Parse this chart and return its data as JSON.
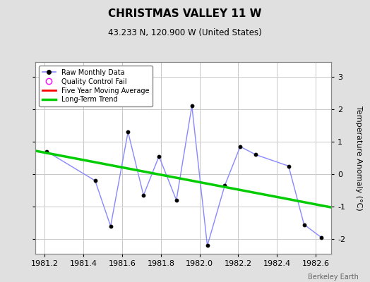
{
  "title": "CHRISTMAS VALLEY 11 W",
  "subtitle": "43.233 N, 120.900 W (United States)",
  "ylabel": "Temperature Anomaly (°C)",
  "watermark": "Berkeley Earth",
  "xlim": [
    1981.15,
    1982.68
  ],
  "ylim": [
    -2.45,
    3.45
  ],
  "yticks": [
    -2,
    -1,
    0,
    1,
    2,
    3
  ],
  "xticks": [
    1981.2,
    1981.4,
    1981.6,
    1981.8,
    1982.0,
    1982.2,
    1982.4,
    1982.6
  ],
  "raw_x_plot": [
    1981.21,
    1981.46,
    1981.54,
    1981.63,
    1981.71,
    1981.79,
    1981.88,
    1981.96,
    1982.04,
    1982.13,
    1982.21,
    1982.29,
    1982.46,
    1982.54,
    1982.63
  ],
  "raw_y_plot": [
    0.7,
    -0.2,
    -1.6,
    1.3,
    -0.65,
    0.55,
    -0.8,
    2.1,
    -2.2,
    -0.35,
    0.85,
    0.6,
    0.25,
    -1.55,
    -1.95
  ],
  "trend_x": [
    1981.15,
    1982.68
  ],
  "trend_y": [
    0.72,
    -1.02
  ],
  "raw_line_color": "#8888ff",
  "raw_dot_color": "#000000",
  "trend_color": "#00cc00",
  "moving_avg_color": "#ff0000",
  "qc_color": "#ff00ff",
  "background_color": "#e0e0e0",
  "plot_bg_color": "#ffffff",
  "grid_color": "#c8c8c8",
  "legend_entries": [
    "Raw Monthly Data",
    "Quality Control Fail",
    "Five Year Moving Average",
    "Long-Term Trend"
  ]
}
